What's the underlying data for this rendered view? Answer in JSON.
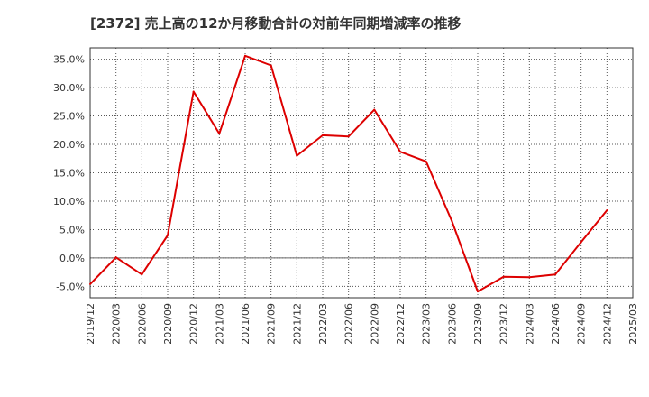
{
  "chart_data": {
    "type": "line",
    "title": "[2372]  売上高の12か月移動合計の対前年同期増減率の推移",
    "xlabel": "",
    "ylabel": "",
    "ylim": [
      -7.0,
      37.0
    ],
    "grid": true,
    "legend": "none",
    "x_tick_labels": [
      "2019/12",
      "2020/03",
      "2020/06",
      "2020/09",
      "2020/12",
      "2021/03",
      "2021/06",
      "2021/09",
      "2021/12",
      "2022/03",
      "2022/06",
      "2022/09",
      "2022/12",
      "2023/03",
      "2023/06",
      "2023/09",
      "2023/12",
      "2024/03",
      "2024/06",
      "2024/09",
      "2024/12",
      "2025/03"
    ],
    "y_ticks": [
      -5,
      0,
      5,
      10,
      15,
      20,
      25,
      30,
      35
    ],
    "y_tick_labels": [
      "-5.0%",
      "0.0%",
      "5.0%",
      "10.0%",
      "15.0%",
      "20.0%",
      "25.0%",
      "30.0%",
      "35.0%"
    ],
    "series": [
      {
        "name": "増減率",
        "color": "#dd0000",
        "x": [
          "2019/12",
          "2020/03",
          "2020/06",
          "2020/09",
          "2020/12",
          "2021/03",
          "2021/06",
          "2021/09",
          "2021/12",
          "2022/03",
          "2022/06",
          "2022/09",
          "2022/12",
          "2023/03",
          "2023/06",
          "2023/09",
          "2023/12",
          "2024/03",
          "2024/06",
          "2024/09",
          "2024/12"
        ],
        "values": [
          -4.6,
          0.1,
          -2.9,
          4.0,
          29.3,
          21.9,
          35.6,
          33.9,
          18.0,
          21.6,
          21.4,
          26.1,
          18.7,
          17.0,
          6.5,
          -5.9,
          -3.3,
          -3.4,
          -2.9,
          2.8,
          8.4
        ]
      }
    ]
  }
}
